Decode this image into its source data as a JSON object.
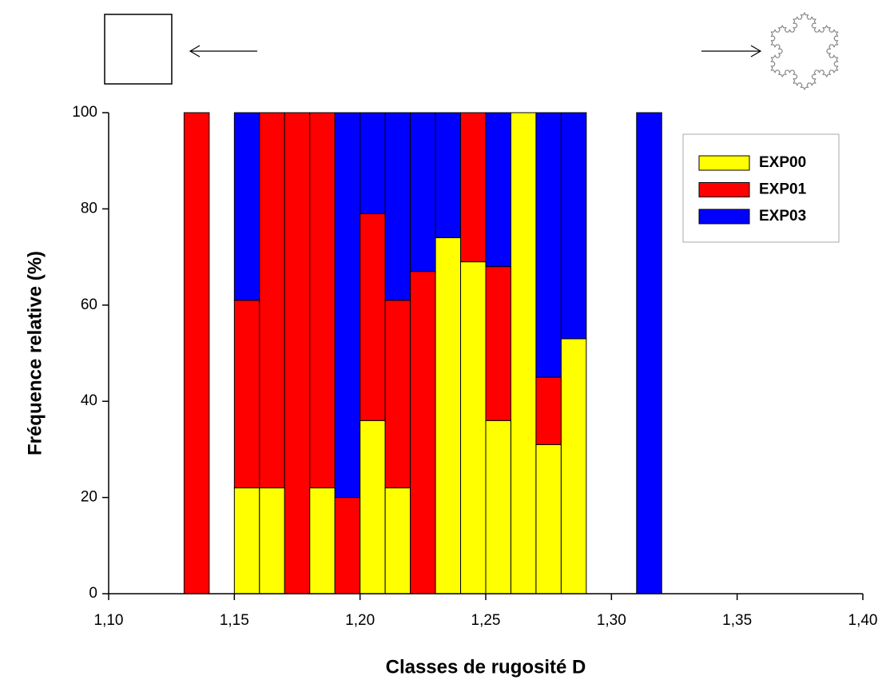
{
  "chart_data": {
    "type": "stacked_histogram",
    "xlabel": "Classes de rugosité D",
    "ylabel": "Fréquence relative (%)",
    "bins": [
      1.13,
      1.14,
      1.15,
      1.16,
      1.17,
      1.18,
      1.19,
      1.2,
      1.21,
      1.22,
      1.23,
      1.24,
      1.25,
      1.26,
      1.27,
      1.28,
      1.29,
      1.3,
      1.31,
      1.32
    ],
    "series": [
      {
        "name": "EXP00",
        "color": "#ffff00",
        "values": [
          0,
          0,
          22,
          22,
          0,
          22,
          0,
          36,
          22,
          0,
          74,
          69,
          36,
          100,
          31,
          53,
          0,
          0,
          0
        ]
      },
      {
        "name": "EXP01",
        "color": "#ff0000",
        "values": [
          100,
          0,
          39,
          78,
          100,
          78,
          20,
          43,
          39,
          67,
          0,
          31,
          32,
          0,
          14,
          0,
          0,
          0,
          0
        ]
      },
      {
        "name": "EXP03",
        "color": "#0000ff",
        "values": [
          0,
          0,
          39,
          0,
          0,
          0,
          80,
          21,
          39,
          33,
          26,
          0,
          32,
          0,
          55,
          47,
          0,
          0,
          100
        ]
      }
    ],
    "xlim": [
      1.1,
      1.4
    ],
    "xticks": [
      {
        "value": 1.1,
        "label": "1,10"
      },
      {
        "value": 1.15,
        "label": "1,15"
      },
      {
        "value": 1.2,
        "label": "1,20"
      },
      {
        "value": 1.25,
        "label": "1,25"
      },
      {
        "value": 1.3,
        "label": "1,30"
      },
      {
        "value": 1.35,
        "label": "1,35"
      },
      {
        "value": 1.4,
        "label": "1,40"
      }
    ],
    "ylim": [
      0,
      100
    ],
    "yticks": [
      0,
      20,
      40,
      60,
      80,
      100
    ],
    "legend": "upper right"
  }
}
